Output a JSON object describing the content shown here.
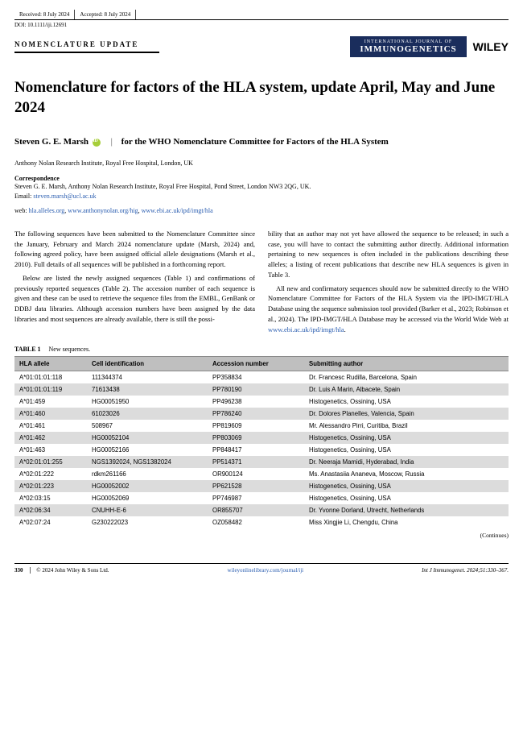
{
  "meta": {
    "received": "Received: 8 July 2024",
    "accepted": "Accepted: 8 July 2024",
    "doi": "DOI: 10.1111/iji.12691"
  },
  "header": {
    "section": "NOMENCLATURE UPDATE",
    "journal_intl": "INTERNATIONAL JOURNAL OF",
    "journal_name": "IMMUNOGENETICS",
    "publisher": "WILEY"
  },
  "title": "Nomenclature for factors of the HLA system, update April, May and June 2024",
  "authors": {
    "name": "Steven G. E. Marsh",
    "affil_suffix": "for the WHO Nomenclature Committee for Factors of the HLA System"
  },
  "affiliation": "Anthony Nolan Research Institute, Royal Free Hospital, London, UK",
  "correspondence": {
    "label": "Correspondence",
    "body": "Steven G. E. Marsh, Anthony Nolan Research Institute, Royal Free Hospital, Pond Street, London NW3 2QG, UK.",
    "email_label": "Email: ",
    "email": "steven.marsh@ucl.ac.uk"
  },
  "web": {
    "label": "web: ",
    "links": [
      "hla.alleles.org",
      "www.anthonynolan.org/hig",
      "www.ebi.ac.uk/ipd/imgt/hla"
    ]
  },
  "body": {
    "col1_p1": "The following sequences have been submitted to the Nomenclature Committee since the January, February and March 2024 nomenclature update (Marsh, 2024) and, following agreed policy, have been assigned official allele designations (Marsh et al., 2010). Full details of all sequences will be published in a forthcoming report.",
    "col1_p2": "Below are listed the newly assigned sequences (Table 1) and confirmations of previously reported sequences (Table 2). The accession number of each sequence is given and these can be used to retrieve the sequence files from the EMBL, GenBank or DDBJ data libraries. Although accession numbers have been assigned by the data libraries and most sequences are already available, there is still the possi-",
    "col2_p1": "bility that an author may not yet have allowed the sequence to be released; in such a case, you will have to contact the submitting author directly. Additional information pertaining to new sequences is often included in the publications describing these alleles; a listing of recent publications that describe new HLA sequences is given in Table 3.",
    "col2_p2a": "All new and confirmatory sequences should now be submitted directly to the WHO Nomenclature Committee for Factors of the HLA System via the IPD-IMGT/HLA Database using the sequence submission tool provided (Barker et al., 2023; Robinson et al., 2024). The IPD-IMGT/HLA Database may be accessed via the World Wide Web at ",
    "col2_link": "www.ebi.ac.uk/ipd/imgt/hla",
    "col2_p2b": "."
  },
  "table": {
    "label": "TABLE 1",
    "caption": "New sequences.",
    "columns": [
      "HLA allele",
      "Cell identification",
      "Accession number",
      "Submitting author"
    ],
    "rows": [
      [
        "A*01:01:01:118",
        "111344374",
        "PP358834",
        "Dr. Francesc Rudilla, Barcelona, Spain"
      ],
      [
        "A*01:01:01:119",
        "71613438",
        "PP780190",
        "Dr. Luis A Marin, Albacete, Spain"
      ],
      [
        "A*01:459",
        "HG00051950",
        "PP496238",
        "Histogenetics, Ossining, USA"
      ],
      [
        "A*01:460",
        "61023026",
        "PP786240",
        "Dr. Dolores Planelles, Valencia, Spain"
      ],
      [
        "A*01:461",
        "508967",
        "PP819609",
        "Mr. Alessandro Pirri, Curitiba, Brazil"
      ],
      [
        "A*01:462",
        "HG00052104",
        "PP803069",
        "Histogenetics, Ossining, USA"
      ],
      [
        "A*01:463",
        "HG00052166",
        "PP848417",
        "Histogenetics, Ossining, USA"
      ],
      [
        "A*02:01:01:255",
        "NGS1392024, NGS1382024",
        "PP514371",
        "Dr. Neeraja Mamidi, Hyderabad, India"
      ],
      [
        "A*02:01:222",
        "rdkm261166",
        "OR900124",
        "Ms. Anastasiia Ananeva, Moscow, Russia"
      ],
      [
        "A*02:01:223",
        "HG00052002",
        "PP621528",
        "Histogenetics, Ossining, USA"
      ],
      [
        "A*02:03:15",
        "HG00052069",
        "PP746987",
        "Histogenetics, Ossining, USA"
      ],
      [
        "A*02:06:34",
        "CNUHH-E-6",
        "OR855707",
        "Dr. Yvonne Dorland, Utrecht, Netherlands"
      ],
      [
        "A*02:07:24",
        "G230222023",
        "OZ058482",
        "Miss Xingjie Li, Chengdu, China"
      ]
    ],
    "continues": "(Continues)"
  },
  "footer": {
    "page": "330",
    "copyright": "© 2024 John Wiley & Sons Ltd.",
    "center": "wileyonlinelibrary.com/journal/iji",
    "right": "Int J Immunogenet. 2024;51:330–367."
  }
}
